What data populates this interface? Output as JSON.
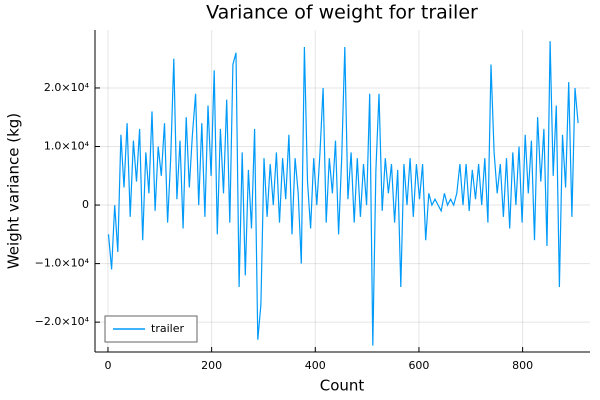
{
  "chart_data": {
    "type": "line",
    "title": "Variance of weight for trailer",
    "x_label": "Count",
    "y_label": "Weight variance (kg)",
    "x": [
      1,
      7,
      13,
      19,
      25,
      31,
      37,
      43,
      49,
      55,
      61,
      67,
      73,
      79,
      85,
      91,
      97,
      103,
      109,
      115,
      121,
      127,
      133,
      139,
      145,
      151,
      157,
      163,
      169,
      175,
      181,
      187,
      193,
      199,
      205,
      211,
      217,
      223,
      229,
      235,
      241,
      247,
      253,
      259,
      265,
      271,
      277,
      283,
      289,
      295,
      301,
      307,
      313,
      319,
      325,
      331,
      337,
      343,
      349,
      355,
      361,
      367,
      373,
      379,
      385,
      391,
      397,
      403,
      409,
      415,
      421,
      427,
      433,
      439,
      445,
      451,
      457,
      463,
      469,
      475,
      481,
      487,
      493,
      499,
      505,
      511,
      517,
      523,
      529,
      535,
      541,
      547,
      553,
      559,
      565,
      571,
      577,
      583,
      589,
      595,
      601,
      607,
      613,
      619,
      625,
      631,
      637,
      643,
      649,
      655,
      661,
      667,
      673,
      679,
      685,
      691,
      697,
      703,
      709,
      715,
      721,
      727,
      733,
      739,
      745,
      751,
      757,
      763,
      769,
      775,
      781,
      787,
      793,
      799,
      805,
      811,
      817,
      823,
      829,
      835,
      841,
      847,
      853,
      859,
      865,
      871,
      877,
      883,
      889,
      895,
      901,
      907
    ],
    "series": [
      {
        "name": "trailer",
        "color": "#009af9",
        "values": [
          -5000,
          -11000,
          0,
          -8000,
          12000,
          3000,
          14000,
          -2000,
          11000,
          4000,
          13000,
          -6000,
          9000,
          2000,
          16000,
          -1000,
          10000,
          5000,
          14000,
          -3000,
          8000,
          25000,
          1000,
          11000,
          -4000,
          15000,
          3000,
          12000,
          19000,
          0,
          14000,
          -2000,
          17000,
          5000,
          23000,
          -5000,
          13000,
          2000,
          18000,
          -3000,
          24000,
          26000,
          -14000,
          9000,
          -12000,
          6000,
          -4000,
          13000,
          -23000,
          -17000,
          8000,
          -2000,
          7000,
          0,
          9000,
          -3000,
          8000,
          1000,
          12000,
          -5000,
          8000,
          2000,
          -10000,
          27000,
          4000,
          -4000,
          8000,
          0,
          9000,
          20000,
          -3000,
          8000,
          2000,
          11000,
          -5000,
          8000,
          27000,
          1000,
          9000,
          -3000,
          8000,
          -2000,
          7000,
          0,
          19000,
          -24000,
          6000,
          19000,
          -1000,
          8000,
          2000,
          7000,
          -3000,
          6000,
          -14000,
          7000,
          0,
          8000,
          -2000,
          7000,
          1000,
          7000,
          -6000,
          2000,
          0,
          1000,
          0,
          -1000,
          2000,
          0,
          1000,
          0,
          2000,
          7000,
          0,
          7000,
          -1000,
          6000,
          1000,
          7000,
          0,
          8000,
          -3000,
          24000,
          9000,
          2000,
          7000,
          -2000,
          8000,
          -4000,
          9000,
          0,
          10000,
          -3000,
          12000,
          2000,
          11000,
          -6000,
          15000,
          4000,
          13000,
          -7000,
          28000,
          5000,
          17000,
          -14000,
          12000,
          3000,
          21000,
          -2000,
          20000,
          14000
        ]
      }
    ],
    "xlim": [
      -25,
      930
    ],
    "xticks": [
      0,
      200,
      400,
      600,
      800
    ],
    "ylim": [
      -25100,
      29900
    ],
    "yticks": [
      {
        "value": -20000,
        "label": "−2.0×10⁴"
      },
      {
        "value": -10000,
        "label": "−1.0×10⁴"
      },
      0,
      {
        "value": 10000,
        "label": "1.0×10⁴"
      },
      {
        "value": 20000,
        "label": "2.0×10⁴"
      }
    ],
    "grid": true,
    "legend_position": "bottom-left"
  }
}
